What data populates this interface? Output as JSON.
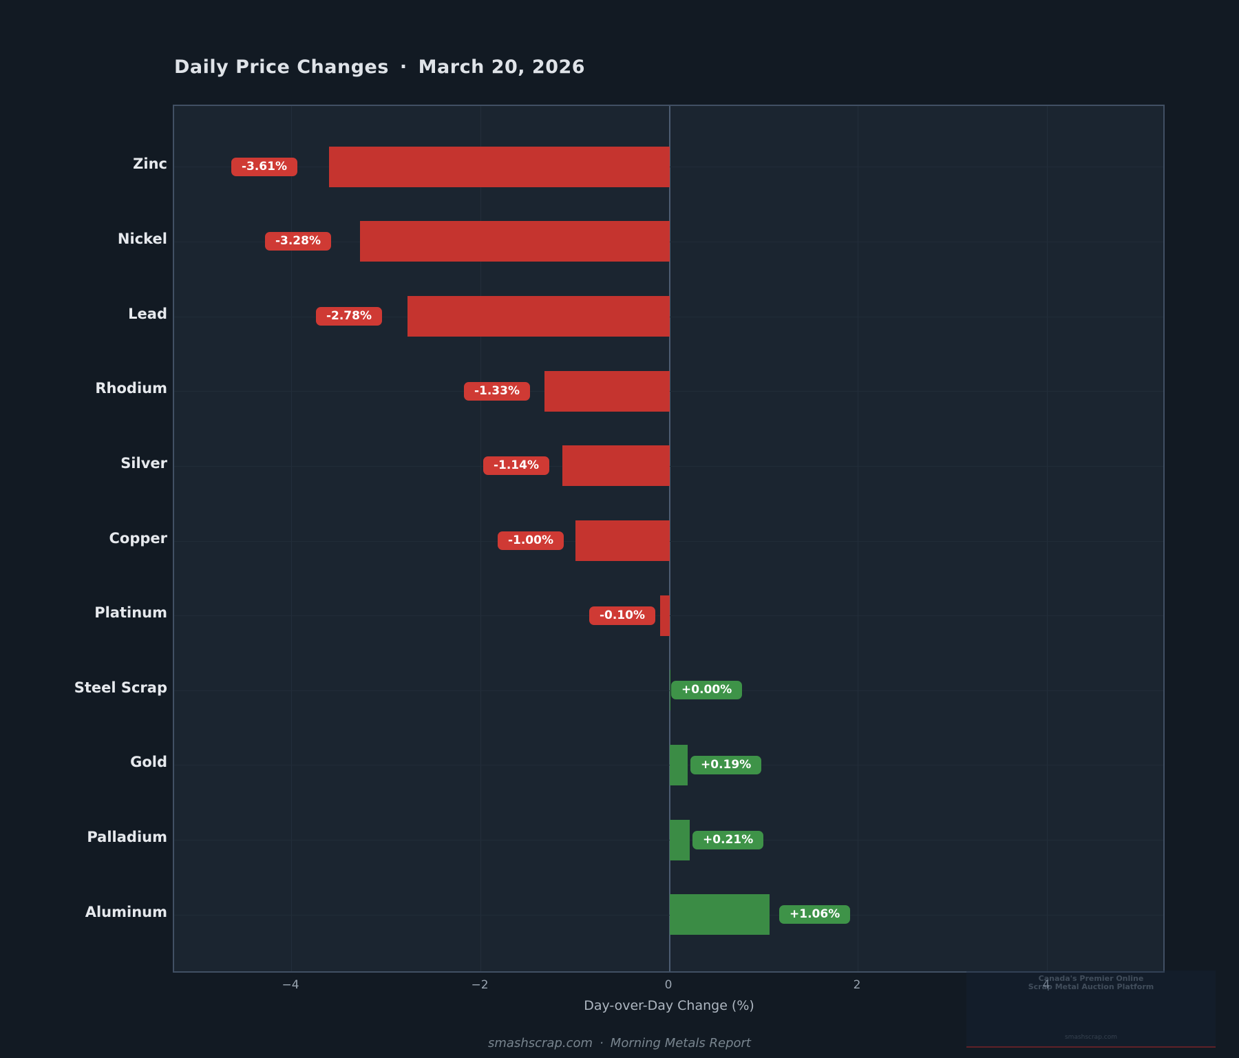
{
  "header": {
    "title": "Daily Price Changes",
    "separator": "·",
    "date": "March 20, 2026"
  },
  "chart_data": {
    "type": "bar",
    "orientation": "horizontal",
    "title": "Daily Price Changes · March 20, 2026",
    "categories": [
      "Zinc",
      "Nickel",
      "Lead",
      "Rhodium",
      "Silver",
      "Copper",
      "Platinum",
      "Steel Scrap",
      "Gold",
      "Palladium",
      "Aluminum"
    ],
    "values": [
      -3.61,
      -3.28,
      -2.78,
      -1.33,
      -1.14,
      -1.0,
      -0.1,
      0.0,
      0.19,
      0.21,
      1.06
    ],
    "value_labels": [
      "-3.61%",
      "-3.28%",
      "-2.78%",
      "-1.33%",
      "-1.14%",
      "-1.00%",
      "-0.10%",
      "+0.00%",
      "+0.19%",
      "+0.21%",
      "+1.06%"
    ],
    "xlabel": "Day-over-Day Change (%)",
    "ylabel": "",
    "xlim": [
      -5.25,
      5.25
    ],
    "x_ticks": [
      {
        "label": "−4",
        "value": -4
      },
      {
        "label": "−2",
        "value": -2
      },
      {
        "label": "0",
        "value": 0
      },
      {
        "label": "2",
        "value": 2
      },
      {
        "label": "4",
        "value": 4
      }
    ],
    "grid": true,
    "legend": "none",
    "colors": {
      "negative_bar": "#c5342f",
      "positive_bar": "#3b8c45",
      "negative_badge": "#cf3a34",
      "positive_badge": "#3e9348",
      "zero_line": "#4d5d72",
      "plot_background": "#1b2530",
      "figure_background": "#121a23"
    }
  },
  "footer": {
    "site": "smashscrap.com",
    "separator": "·",
    "report": "Morning Metals Report"
  },
  "watermark": {
    "line1": "Canada's Premier Online",
    "line2": "Scrap Metal Auction Platform",
    "site": "smashscrap.com"
  }
}
